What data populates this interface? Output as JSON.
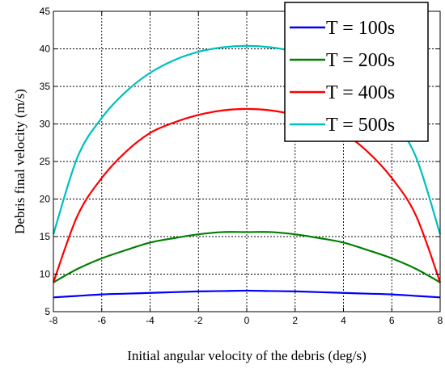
{
  "chart_data": {
    "type": "line",
    "title": "",
    "xlabel": "Initial angular velocity of the debris (deg/s)",
    "ylabel": "Debris final velocity (m/s)",
    "xlim": [
      -8,
      8
    ],
    "ylim": [
      5,
      45
    ],
    "xticks": [
      -8,
      -6,
      -4,
      -2,
      0,
      2,
      4,
      6,
      8
    ],
    "yticks": [
      5,
      10,
      15,
      20,
      25,
      30,
      35,
      40,
      45
    ],
    "grid": true,
    "legend_position": "top-right",
    "x": [
      -8,
      -7,
      -6,
      -5,
      -4,
      -3,
      -2,
      -1,
      0,
      1,
      2,
      3,
      4,
      5,
      6,
      7,
      8
    ],
    "series": [
      {
        "name": "T = 100s",
        "color": "#0000ff",
        "values": [
          6.9,
          7.1,
          7.3,
          7.4,
          7.5,
          7.6,
          7.7,
          7.75,
          7.8,
          7.75,
          7.7,
          7.6,
          7.5,
          7.4,
          7.3,
          7.1,
          6.9
        ]
      },
      {
        "name": "T = 200s",
        "color": "#008000",
        "values": [
          8.9,
          10.7,
          12.1,
          13.2,
          14.2,
          14.8,
          15.3,
          15.6,
          15.6,
          15.6,
          15.3,
          14.8,
          14.2,
          13.2,
          12.1,
          10.7,
          8.9
        ]
      },
      {
        "name": "T = 400s",
        "color": "#ff0000",
        "values": [
          8.9,
          17.8,
          22.8,
          26.3,
          28.8,
          30.2,
          31.2,
          31.8,
          32.0,
          31.8,
          31.2,
          30.2,
          28.8,
          26.3,
          22.8,
          17.8,
          8.9
        ]
      },
      {
        "name": "T = 500s",
        "color": "#00bfbf",
        "values": [
          15.3,
          25.6,
          30.8,
          34.3,
          36.8,
          38.5,
          39.6,
          40.2,
          40.4,
          40.2,
          39.6,
          38.5,
          36.8,
          34.3,
          30.8,
          25.6,
          15.3
        ]
      }
    ]
  }
}
